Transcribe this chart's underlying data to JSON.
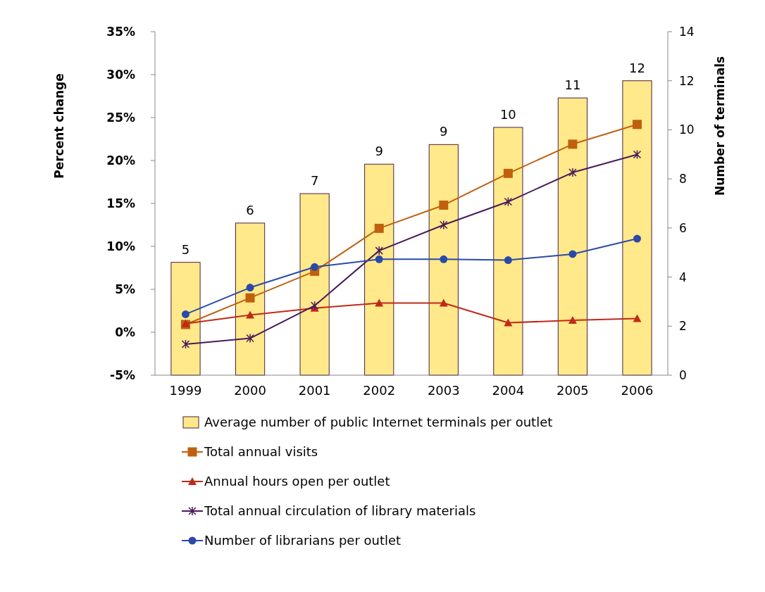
{
  "chart_data": {
    "type": "line",
    "categories": [
      "1999",
      "2000",
      "2001",
      "2002",
      "2003",
      "2004",
      "2005",
      "2006"
    ],
    "ylabel": "Percent change",
    "y2label": "Number of terminals",
    "ylim": [
      -5,
      35
    ],
    "yticks": [
      {
        "value": -5,
        "label": "-5%"
      },
      {
        "value": 0,
        "label": "0%"
      },
      {
        "value": 5,
        "label": "5%"
      },
      {
        "value": 10,
        "label": "10%"
      },
      {
        "value": 15,
        "label": "15%"
      },
      {
        "value": 20,
        "label": "20%"
      },
      {
        "value": 25,
        "label": "25%"
      },
      {
        "value": 30,
        "label": "30%"
      },
      {
        "value": 35,
        "label": "35%"
      }
    ],
    "y2lim": [
      0,
      14
    ],
    "y2ticks": [
      0,
      2,
      4,
      6,
      8,
      10,
      12,
      14
    ],
    "legend": "bottom",
    "grid": false,
    "series": [
      {
        "name": "Average number of public Internet terminals per outlet",
        "type": "bar",
        "axis": "y2",
        "color": "#ffe98a",
        "values": [
          4.6,
          6.2,
          7.4,
          8.6,
          9.4,
          10.1,
          11.3,
          12
        ],
        "value_labels": [
          "5",
          "6",
          "7",
          "9",
          "9",
          "10",
          "11",
          "12"
        ]
      },
      {
        "name": "Total annual visits",
        "color": "#c0600f",
        "marker": "square",
        "values": [
          0.9,
          4.0,
          7.1,
          12.1,
          14.8,
          18.5,
          21.9,
          24.2
        ]
      },
      {
        "name": "Annual hours open per outlet",
        "color": "#c02a1a",
        "marker": "triangle",
        "values": [
          1.0,
          2.0,
          2.8,
          3.4,
          3.4,
          1.1,
          1.4,
          1.6
        ]
      },
      {
        "name": "Total annual circulation of library materials",
        "color": "#4a1a5a",
        "marker": "cross",
        "values": [
          -1.4,
          -0.7,
          3.1,
          9.5,
          12.5,
          15.2,
          18.6,
          20.7
        ]
      },
      {
        "name": "Number of librarians per outlet",
        "color": "#2a4aa8",
        "marker": "circle",
        "values": [
          2.1,
          5.2,
          7.6,
          8.5,
          8.5,
          8.4,
          9.1,
          10.9
        ]
      }
    ]
  }
}
